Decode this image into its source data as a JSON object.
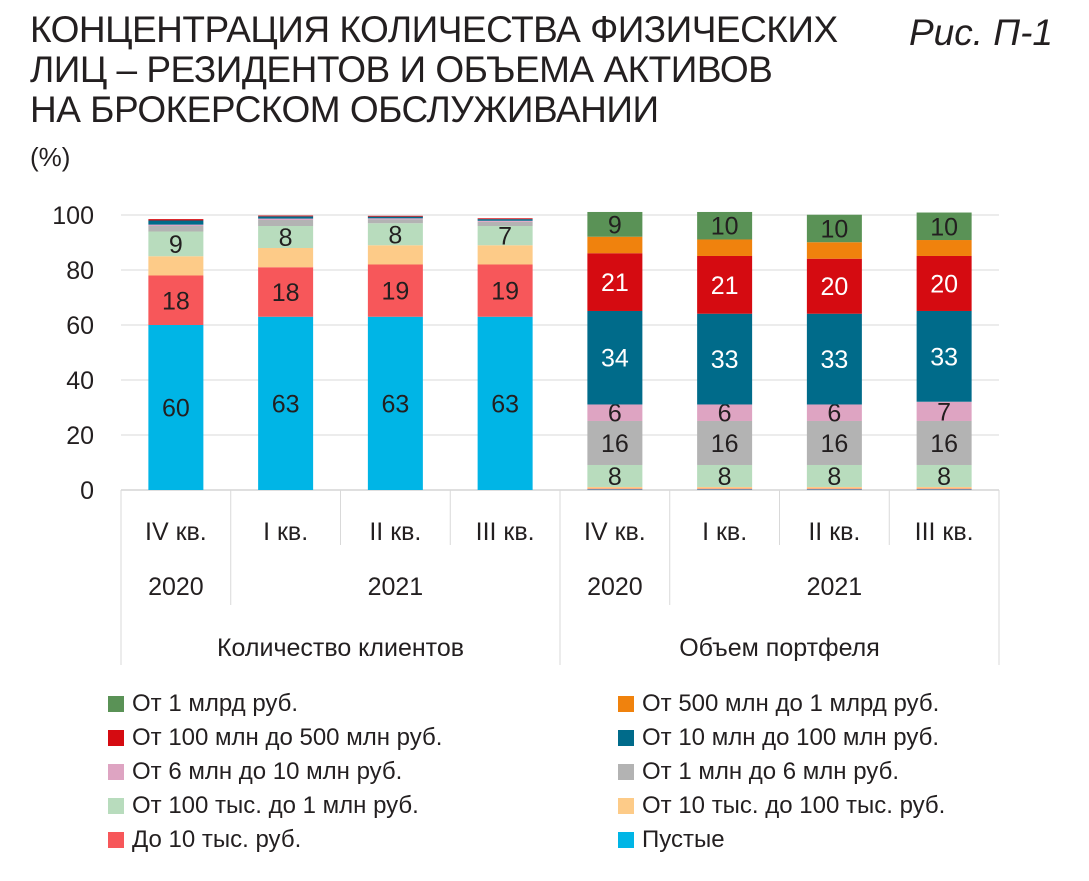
{
  "title_lines": [
    "КОНЦЕНТРАЦИЯ КОЛИЧЕСТВА ФИЗИЧЕСКИХ",
    "ЛИЦ – РЕЗИДЕНТОВ И ОБЪЕМА АКТИВОВ",
    "НА БРОКЕРСКОМ ОБСЛУЖИВАНИИ"
  ],
  "figure_label": "Рис. П-1",
  "unit_label": "(%)",
  "chart_data": {
    "type": "bar",
    "stacked": true,
    "ylim": [
      0,
      100
    ],
    "yticks": [
      "0",
      "20",
      "40",
      "60",
      "80",
      "100"
    ],
    "grid": true,
    "legend_position": "bottom",
    "groups": [
      {
        "label": "Количество клиентов",
        "subgroups": [
          {
            "label": "2020",
            "categories": [
              "IV кв."
            ]
          },
          {
            "label": "2021",
            "categories": [
              "I кв.",
              "II кв.",
              "III кв."
            ]
          }
        ]
      },
      {
        "label": "Объем портфеля",
        "subgroups": [
          {
            "label": "2020",
            "categories": [
              "IV кв."
            ]
          },
          {
            "label": "2021",
            "categories": [
              "I кв.",
              "II кв.",
              "III кв."
            ]
          }
        ]
      }
    ],
    "categories": [
      "IV кв.",
      "I кв.",
      "II кв.",
      "III кв.",
      "IV кв.",
      "I кв.",
      "II кв.",
      "III кв."
    ],
    "series": [
      {
        "name": "Пустые",
        "color": "#00b5e6",
        "label_color": "#231f20",
        "values": [
          60,
          63,
          63,
          63,
          0.2,
          0.2,
          0.2,
          0.2
        ],
        "labels": [
          "60",
          "63",
          "63",
          "63",
          "",
          "",
          "",
          ""
        ]
      },
      {
        "name": "До 10 тыс. руб.",
        "color": "#f7575a",
        "label_color": "#231f20",
        "values": [
          18,
          18,
          19,
          19,
          0.3,
          0.3,
          0.3,
          0.3
        ],
        "labels": [
          "18",
          "18",
          "19",
          "19",
          "",
          "",
          "",
          ""
        ]
      },
      {
        "name": "От 10 тыс. до 100 тыс. руб.",
        "color": "#fdcb88",
        "label_color": "#231f20",
        "values": [
          7,
          7,
          7,
          7,
          0.6,
          0.6,
          0.6,
          0.6
        ],
        "labels": [
          "",
          "",
          "",
          "",
          "",
          "",
          "",
          ""
        ]
      },
      {
        "name": "От 100 тыс. до 1 млн руб.",
        "color": "#b8dcbd",
        "label_color": "#231f20",
        "values": [
          9,
          8,
          8,
          7,
          8,
          8,
          8,
          8
        ],
        "labels": [
          "9",
          "8",
          "8",
          "7",
          "8",
          "8",
          "8",
          "8"
        ]
      },
      {
        "name": "От 1 млн до 6 млн руб.",
        "color": "#b3b3b3",
        "label_color": "#231f20",
        "values": [
          2,
          2.2,
          1.4,
          1.5,
          16,
          16,
          16,
          16
        ],
        "labels": [
          "",
          "",
          "",
          "",
          "16",
          "16",
          "16",
          "16"
        ]
      },
      {
        "name": "От 6 млн до 10 млн руб.",
        "color": "#dea4c2",
        "label_color": "#231f20",
        "values": [
          0.5,
          0.5,
          0.4,
          0.4,
          6,
          6,
          6,
          7
        ],
        "labels": [
          "",
          "",
          "",
          "",
          "6",
          "6",
          "6",
          "7"
        ]
      },
      {
        "name": "От 10 млн до 100 млн руб.",
        "color": "#006b8a",
        "label_color": "#ffffff",
        "values": [
          1.5,
          0.8,
          0.6,
          0.6,
          34,
          33,
          33,
          33
        ],
        "labels": [
          "",
          "",
          "",
          "",
          "34",
          "33",
          "33",
          "33"
        ]
      },
      {
        "name": "От 100 млн до 500 млн руб.",
        "color": "#d50b11",
        "label_color": "#ffffff",
        "values": [
          0.5,
          0.3,
          0.3,
          0.3,
          21,
          21,
          20,
          20
        ],
        "labels": [
          "",
          "",
          "",
          "",
          "21",
          "21",
          "20",
          "20"
        ]
      },
      {
        "name": "От 500 млн до 1 млрд руб.",
        "color": "#f0820d",
        "label_color": "#231f20",
        "values": [
          0,
          0,
          0,
          0,
          6,
          6,
          6,
          5.8
        ],
        "labels": [
          "",
          "",
          "",
          "",
          "",
          "",
          "",
          ""
        ]
      },
      {
        "name": "От 1 млрд руб.",
        "color": "#5a9256",
        "label_color": "#231f20",
        "values": [
          0,
          0,
          0,
          0,
          9,
          10,
          10,
          10
        ],
        "labels": [
          "",
          "",
          "",
          "",
          "9",
          "10",
          "10",
          "10"
        ]
      }
    ],
    "legend_order": [
      "От 1 млрд руб.",
      "От 500 млн до 1 млрд руб.",
      "От 100 млн до 500 млн руб.",
      "От 10 млн до 100 млн руб.",
      "От 6 млн до 10 млн руб.",
      "От 1 млн до 6 млн руб.",
      "От 100 тыс. до 1 млн руб.",
      "От 10 тыс. до 100 тыс. руб.",
      "До 10 тыс. руб.",
      "Пустые"
    ]
  }
}
